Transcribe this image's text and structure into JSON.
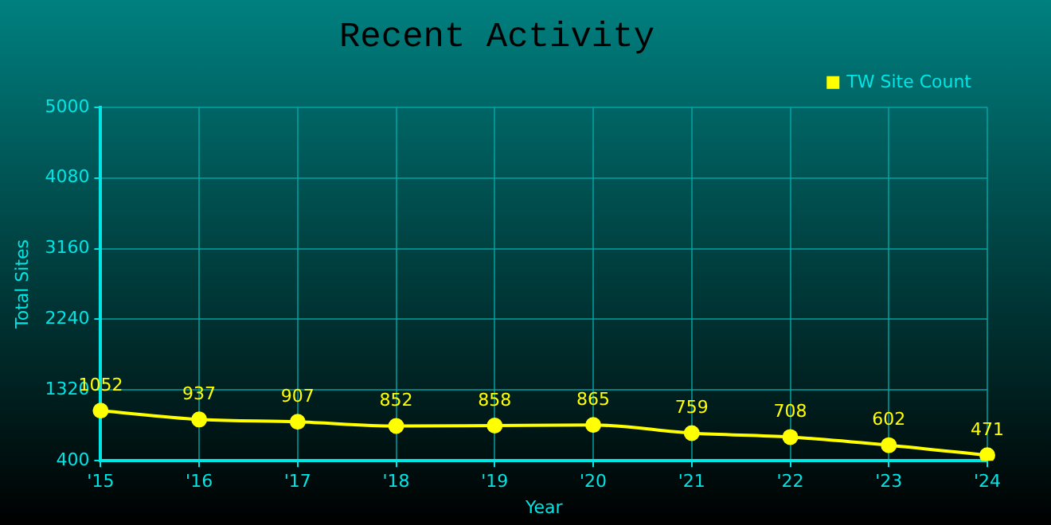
{
  "chart_data": {
    "type": "line",
    "title": "Recent Activity",
    "xlabel": "Year",
    "ylabel": "Total Sites",
    "categories": [
      "'15",
      "'16",
      "'17",
      "'18",
      "'19",
      "'20",
      "'21",
      "'22",
      "'23",
      "'24"
    ],
    "series": [
      {
        "name": "TW Site Count",
        "color": "#ffff00",
        "values": [
          1052,
          937,
          907,
          852,
          858,
          865,
          759,
          708,
          602,
          471
        ]
      }
    ],
    "ylim": [
      400,
      5000
    ],
    "yticks": [
      400,
      1320,
      2240,
      3160,
      4080,
      5000
    ],
    "grid": true,
    "legend": "top right",
    "marker": "circle",
    "line_style": "solid",
    "data_labels": true
  }
}
